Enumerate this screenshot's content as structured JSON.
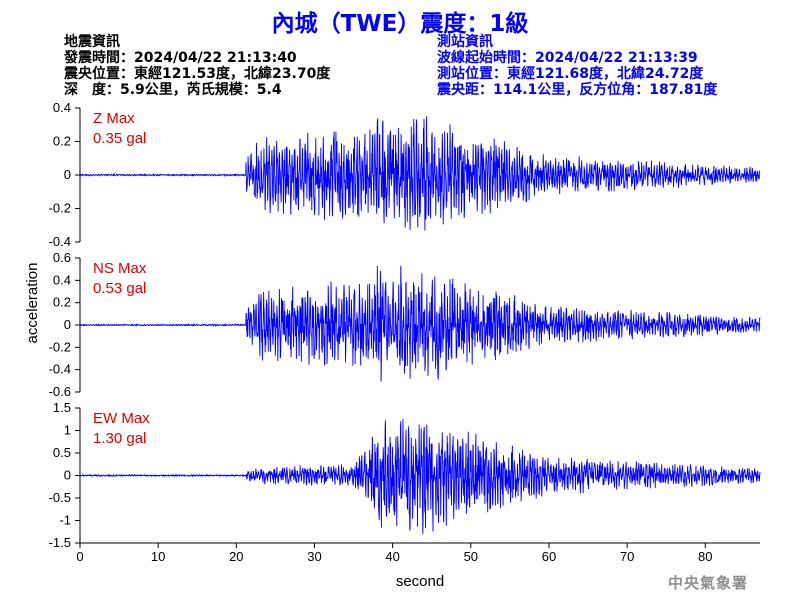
{
  "title": "內城（TWE）震度：1級",
  "quake_info": {
    "heading": "地震資訊",
    "origin_time": "發震時間：2024/04/22 21:13:40",
    "epicenter": "震央位置：東經121.53度，北緯23.70度",
    "depth_magnitude": "深　度：5.9公里，芮氏規模：5.4"
  },
  "station_info": {
    "heading": "測站資訊",
    "arrival_time": "波線起始時間：2024/04/22 21:13:39",
    "location": "測站位置：東經121.68度，北緯24.72度",
    "distance_azimuth": "震央距：114.1公里，反方位角：187.81度"
  },
  "credit": "中央氣象署",
  "colors": {
    "trace": "#0000ff",
    "max_label": "#e00000",
    "title": "#0000ff"
  },
  "chart_data": [
    {
      "type": "line",
      "component": "Z",
      "max_label": "Z Max",
      "max_value": "0.35 gal",
      "peak": 0.35,
      "ylim": [
        -0.4,
        0.4
      ],
      "yticks": [
        -0.4,
        -0.2,
        0,
        0.2,
        0.4
      ],
      "ytick_labels": [
        "-0.4",
        "-0.2",
        "0",
        "0.2",
        "0.4"
      ]
    },
    {
      "type": "line",
      "component": "NS",
      "max_label": "NS Max",
      "max_value": "0.53 gal",
      "peak": 0.53,
      "ylim": [
        -0.6,
        0.6
      ],
      "yticks": [
        -0.6,
        -0.4,
        -0.2,
        0,
        0.2,
        0.4,
        0.6
      ],
      "ytick_labels": [
        "-0.6",
        "-0.4",
        "-0.2",
        "0",
        "0.2",
        "0.4",
        "0.6"
      ]
    },
    {
      "type": "line",
      "component": "EW",
      "max_label": "EW Max",
      "max_value": "1.30 gal",
      "peak": 1.3,
      "ylim": [
        -1.5,
        1.5
      ],
      "yticks": [
        -1.5,
        -1,
        -0.5,
        0,
        0.5,
        1,
        1.5
      ],
      "ytick_labels": [
        "-1.5",
        "-1",
        "-0.5",
        "0",
        "0.5",
        "1",
        "1.5"
      ]
    }
  ],
  "x_axis": {
    "label": "second",
    "xlim": [
      0,
      87
    ],
    "ticks": [
      0,
      10,
      20,
      30,
      40,
      50,
      60,
      70,
      80
    ],
    "tick_labels": [
      "0",
      "10",
      "20",
      "30",
      "40",
      "50",
      "60",
      "70",
      "80"
    ]
  },
  "y_axis_label": "acceleration"
}
